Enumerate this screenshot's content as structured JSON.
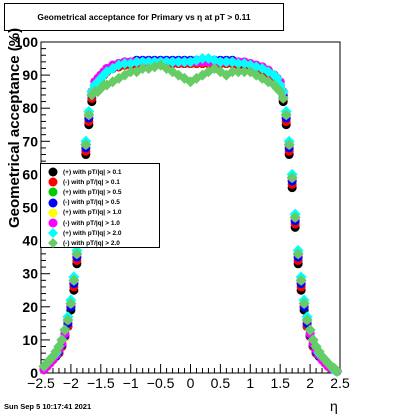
{
  "title": "Geometrical acceptance for Primary vs  η at pT > 0.11",
  "footer": {
    "datestamp": "Sun Sep  5 10:17:41 2021"
  },
  "chart_data": {
    "type": "scatter",
    "title": "Geometrical acceptance for Primary vs  η at pT > 0.11",
    "xlabel": "η",
    "ylabel": "Geometrical acceptance (%)",
    "xlim": [
      -2.5,
      2.5
    ],
    "ylim": [
      0,
      100
    ],
    "x_ticks": [
      "−2.5",
      "−2",
      "−1.5",
      "−1",
      "−0.5",
      "0",
      "0.5",
      "1",
      "1.5",
      "2",
      "2.5"
    ],
    "y_ticks": [
      "0",
      "10",
      "20",
      "30",
      "40",
      "50",
      "60",
      "70",
      "80",
      "90",
      "100"
    ],
    "grid": false,
    "legend_position": "middle-left",
    "x": [
      -2.45,
      -2.4,
      -2.35,
      -2.3,
      -2.25,
      -2.2,
      -2.15,
      -2.1,
      -2.05,
      -2.0,
      -1.95,
      -1.9,
      -1.85,
      -1.8,
      -1.75,
      -1.7,
      -1.65,
      -1.6,
      -1.55,
      -1.5,
      -1.45,
      -1.4,
      -1.3,
      -1.2,
      -1.1,
      -1.0,
      -0.9,
      -0.8,
      -0.7,
      -0.6,
      -0.5,
      -0.4,
      -0.3,
      -0.2,
      -0.1,
      0.0,
      0.1,
      0.2,
      0.3,
      0.4,
      0.5,
      0.6,
      0.7,
      0.8,
      0.9,
      1.0,
      1.1,
      1.2,
      1.3,
      1.4,
      1.45,
      1.5,
      1.55,
      1.6,
      1.65,
      1.7,
      1.75,
      1.8,
      1.85,
      1.9,
      1.95,
      2.0,
      2.05,
      2.1,
      2.15,
      2.2,
      2.25,
      2.3,
      2.35,
      2.4,
      2.45
    ],
    "series": [
      {
        "name": "(+) with pT/|q| > 0.1",
        "color": "#000000",
        "marker": "circle",
        "values": [
          1,
          2,
          3,
          4,
          5,
          6,
          8,
          11,
          14,
          19,
          25,
          33,
          44,
          56,
          66,
          75,
          82,
          86,
          88,
          89,
          90,
          91,
          92,
          92.5,
          93,
          93,
          93.5,
          93.5,
          93.5,
          93.5,
          93.5,
          93.5,
          93.5,
          93.5,
          93.5,
          93.5,
          93.5,
          93.5,
          93.5,
          93.5,
          93.5,
          93.5,
          93.5,
          93,
          93,
          92.5,
          92,
          91.5,
          90.5,
          89,
          88,
          86,
          82,
          75,
          66,
          56,
          44,
          33,
          25,
          19,
          14,
          11,
          8,
          6,
          5,
          4,
          3,
          2,
          1.5,
          1,
          0.5
        ]
      },
      {
        "name": "(-) with pT/|q| > 0.1",
        "color": "#ff0000",
        "marker": "circle",
        "values": [
          1,
          2,
          3,
          4,
          5,
          6,
          8,
          11,
          14,
          20,
          26,
          34,
          45,
          57,
          67,
          76,
          83,
          86,
          88,
          89,
          90,
          91,
          92,
          92.5,
          93,
          93,
          93.5,
          93.5,
          93.5,
          93.5,
          93.5,
          93.5,
          93.5,
          93.5,
          93.5,
          93.5,
          93.5,
          93.5,
          93.5,
          93.5,
          93.5,
          93.5,
          93.5,
          93,
          93,
          92.5,
          92,
          91.5,
          90.5,
          89,
          88,
          86,
          83,
          76,
          67,
          57,
          45,
          34,
          26,
          20,
          14,
          11,
          8,
          6,
          5,
          4,
          3,
          2,
          1.5,
          1,
          0.5
        ]
      },
      {
        "name": "(+) with pT/|q| > 0.5",
        "color": "#00cc00",
        "marker": "circle",
        "values": [
          1,
          2,
          3,
          4,
          5,
          6.5,
          8.5,
          11.5,
          15,
          20,
          27,
          35,
          46,
          58,
          68,
          77,
          84,
          87,
          89,
          90,
          91,
          92,
          93,
          93.5,
          94,
          94,
          94,
          94,
          94,
          94,
          94,
          94,
          94,
          94,
          94,
          94,
          94,
          94,
          94,
          94,
          94,
          94,
          94,
          94,
          93.5,
          93.5,
          93,
          92.5,
          91.5,
          90,
          89,
          87,
          84,
          77,
          68,
          58,
          46,
          35,
          27,
          20,
          15,
          11.5,
          8.5,
          6.5,
          5,
          4,
          3,
          2,
          1.5,
          1,
          0.5
        ]
      },
      {
        "name": "(-) with pT/|q| > 0.5",
        "color": "#0000ff",
        "marker": "circle",
        "values": [
          1,
          2,
          3,
          4,
          5,
          6.5,
          8.5,
          11.5,
          15,
          20,
          27,
          35,
          46,
          58,
          68,
          77,
          84,
          87,
          89,
          90,
          91,
          92,
          93,
          93.5,
          94,
          94,
          94.5,
          94.5,
          94.5,
          94.5,
          94.5,
          94.5,
          94.5,
          94.5,
          94.5,
          94.5,
          94.5,
          94.5,
          94.5,
          94.5,
          94.5,
          94.5,
          94.5,
          94,
          93.5,
          93.5,
          93,
          92.5,
          91.5,
          90,
          89,
          87,
          84,
          77,
          68,
          58,
          46,
          35,
          27,
          20,
          15,
          11.5,
          8.5,
          6.5,
          5,
          4,
          3,
          2,
          1.5,
          1,
          0.5
        ]
      },
      {
        "name": "(+) with pT/|q| > 1.0",
        "color": "#ffff00",
        "marker": "circle",
        "values": [
          1,
          2,
          3,
          4,
          5.5,
          7,
          9,
          12,
          16,
          21,
          28,
          36,
          47,
          59,
          69,
          78,
          85,
          88,
          89,
          90,
          91,
          92,
          93,
          93.5,
          94,
          94,
          94,
          94,
          94,
          94,
          94,
          94,
          94,
          94,
          94,
          94,
          94,
          94,
          94,
          94,
          94,
          94,
          94,
          94,
          94,
          93.5,
          93,
          92.5,
          91.5,
          90,
          89,
          88,
          85,
          78,
          69,
          59,
          47,
          36,
          28,
          21,
          16,
          12,
          9,
          7,
          5.5,
          4,
          3,
          2,
          1.5,
          1,
          0.5
        ]
      },
      {
        "name": "(-) with pT/|q| > 1.0",
        "color": "#ff00ff",
        "marker": "circle",
        "values": [
          1,
          2,
          3,
          4,
          5.5,
          7,
          9,
          12,
          16,
          21,
          28,
          36,
          47,
          59,
          69,
          78,
          85,
          88,
          89,
          90,
          91,
          92,
          93,
          93.5,
          94,
          94,
          94,
          94,
          94,
          94,
          94,
          94,
          94,
          94,
          94,
          94,
          94,
          94,
          94,
          94,
          94,
          94,
          94,
          94,
          94,
          93.5,
          93,
          92.5,
          91.5,
          90,
          89,
          88,
          85,
          78,
          69,
          59,
          47,
          36,
          28,
          21,
          16,
          12,
          9,
          7,
          5.5,
          4,
          3,
          2,
          1.5,
          1,
          0.5
        ]
      },
      {
        "name": "(+) with pT/|q| > 2.0",
        "color": "#00ffff",
        "marker": "diamond",
        "values": [
          2,
          3,
          4,
          5,
          6,
          8,
          10,
          13,
          17,
          22,
          29,
          37,
          48,
          60,
          70,
          79,
          85,
          87,
          88,
          89,
          90,
          91,
          92,
          93,
          93.5,
          93.5,
          94,
          94,
          94,
          94,
          94,
          94,
          94,
          94,
          94,
          94,
          94.5,
          95,
          95,
          94.5,
          94,
          94,
          94,
          93.5,
          93.5,
          93,
          92.5,
          92,
          91,
          90,
          89,
          87,
          85,
          79,
          70,
          60,
          48,
          37,
          29,
          22,
          17,
          13,
          10,
          8,
          6,
          5,
          4,
          3,
          2,
          1,
          0.5
        ]
      },
      {
        "name": "(-) with pT/|q| > 2.0",
        "color": "#66cc66",
        "marker": "diamond",
        "values": [
          2,
          3,
          4,
          5,
          6.5,
          8,
          10,
          13,
          16,
          21,
          28,
          36,
          47,
          59,
          69,
          78,
          84,
          85,
          85,
          86,
          87,
          87,
          88,
          89,
          90,
          91,
          91,
          92,
          92,
          92.5,
          93,
          92,
          91,
          90,
          89,
          88,
          89,
          90,
          91,
          92,
          91,
          90,
          91,
          91,
          91,
          91,
          90,
          89,
          88,
          87,
          86,
          85,
          83,
          78,
          69,
          59,
          47,
          36,
          28,
          21,
          16,
          13,
          10,
          8,
          6.5,
          5,
          4,
          3,
          2,
          1.5,
          0.5
        ]
      }
    ]
  }
}
